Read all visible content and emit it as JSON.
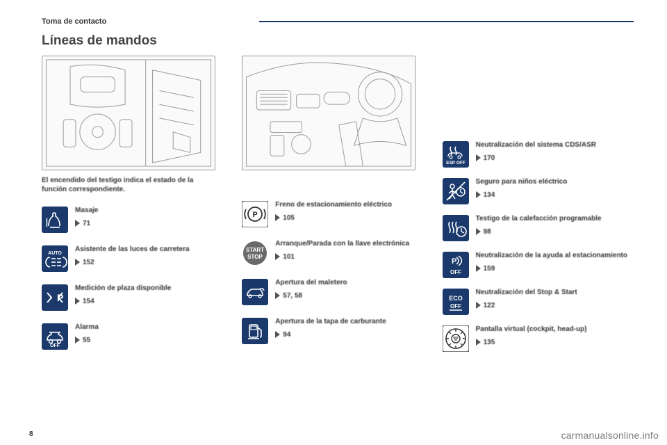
{
  "header": {
    "section": "Toma de contacto"
  },
  "title": "Líneas de mandos",
  "lead": "El encendido del testigo indica el estado de la función correspondiente.",
  "page_number": "8",
  "watermark": "carmanualsonline.info",
  "theme": {
    "icon_bg_blue": "#1b3a6b",
    "icon_bg_gray": "#6a6a6a",
    "icon_fg": "#ffffff",
    "icon_outline": "#333333",
    "rule_color": "#1b3a6b"
  },
  "col1": [
    {
      "label": "Masaje",
      "page": "71",
      "icon": "massage",
      "style": "blue"
    },
    {
      "label": "Asistente de las luces de carretera",
      "page": "152",
      "icon": "auto-beam",
      "style": "blue"
    },
    {
      "label": "Medición de plaza disponible",
      "page": "154",
      "icon": "park-measure",
      "style": "blue"
    },
    {
      "label": "Alarma",
      "page": "55",
      "icon": "alarm-off",
      "style": "blue"
    }
  ],
  "col2": [
    {
      "label": "Freno de estacionamiento eléctrico",
      "page": "105",
      "icon": "epb",
      "style": "outline"
    },
    {
      "label": "Arranque/Parada con la llave electrónica",
      "page": "101",
      "icon": "start-stop-btn",
      "style": "gray"
    },
    {
      "label": "Apertura del maletero",
      "page": "57, 58",
      "icon": "trunk",
      "style": "blue"
    },
    {
      "label": "Apertura de la tapa de carburante",
      "page": "94",
      "icon": "fuel-flap",
      "style": "blue"
    }
  ],
  "col3": [
    {
      "label": "Neutralización del sistema CDS/ASR",
      "page": "170",
      "icon": "esp-off",
      "style": "blue"
    },
    {
      "label": "Seguro para niños eléctrico",
      "page": "134",
      "icon": "child-lock",
      "style": "blue"
    },
    {
      "label": "Testigo de la calefacción programable",
      "page": "98",
      "icon": "heater-timer",
      "style": "blue"
    },
    {
      "label": "Neutralización de la ayuda al estacionamiento",
      "page": "159",
      "icon": "park-assist-off",
      "style": "blue"
    },
    {
      "label": "Neutralización del Stop & Start",
      "page": "122",
      "icon": "eco-off",
      "style": "blue"
    },
    {
      "label": "Pantalla virtual (cockpit, head-up)",
      "page": "135",
      "icon": "hud-dial",
      "style": "outline"
    }
  ]
}
